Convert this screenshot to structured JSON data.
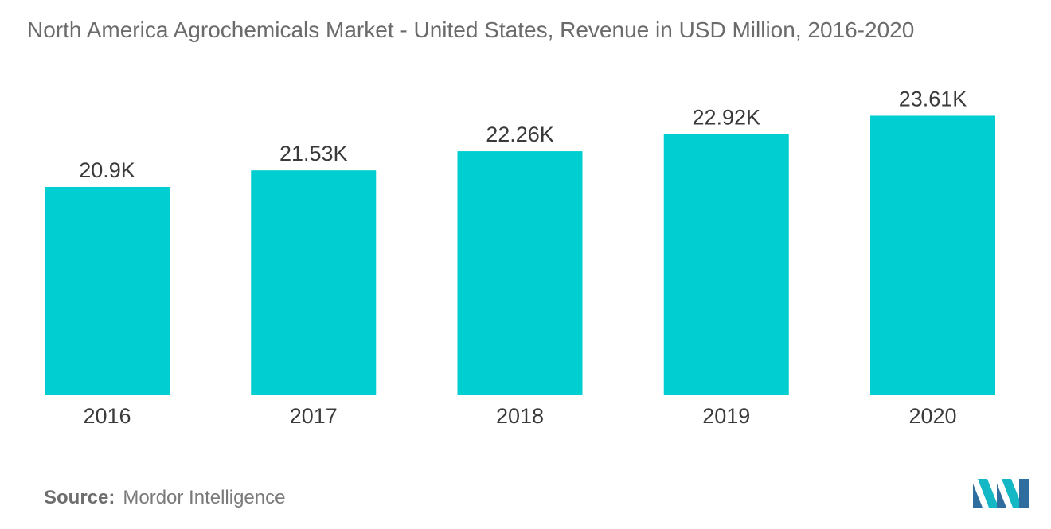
{
  "chart_data": {
    "type": "bar",
    "title": "North America Agrochemicals Market - United States, Revenue in USD Million, 2016-2020",
    "categories": [
      "2016",
      "2017",
      "2018",
      "2019",
      "2020"
    ],
    "values": [
      20.9,
      21.53,
      22.26,
      22.92,
      23.61
    ],
    "data_labels": [
      "20.9K",
      "21.53K",
      "22.26K",
      "22.92K",
      "23.61K"
    ],
    "unit": "K",
    "bar_color": "#00CED1",
    "xlabel": "",
    "ylabel": "",
    "grid": false,
    "legend": "none"
  },
  "footer": {
    "source_label": "Source:",
    "source_text": "Mordor Intelligence"
  },
  "logo": {
    "icon": "mordor-intelligence-logo",
    "colors": [
      "#2f6d9e",
      "#14b8c4"
    ]
  }
}
